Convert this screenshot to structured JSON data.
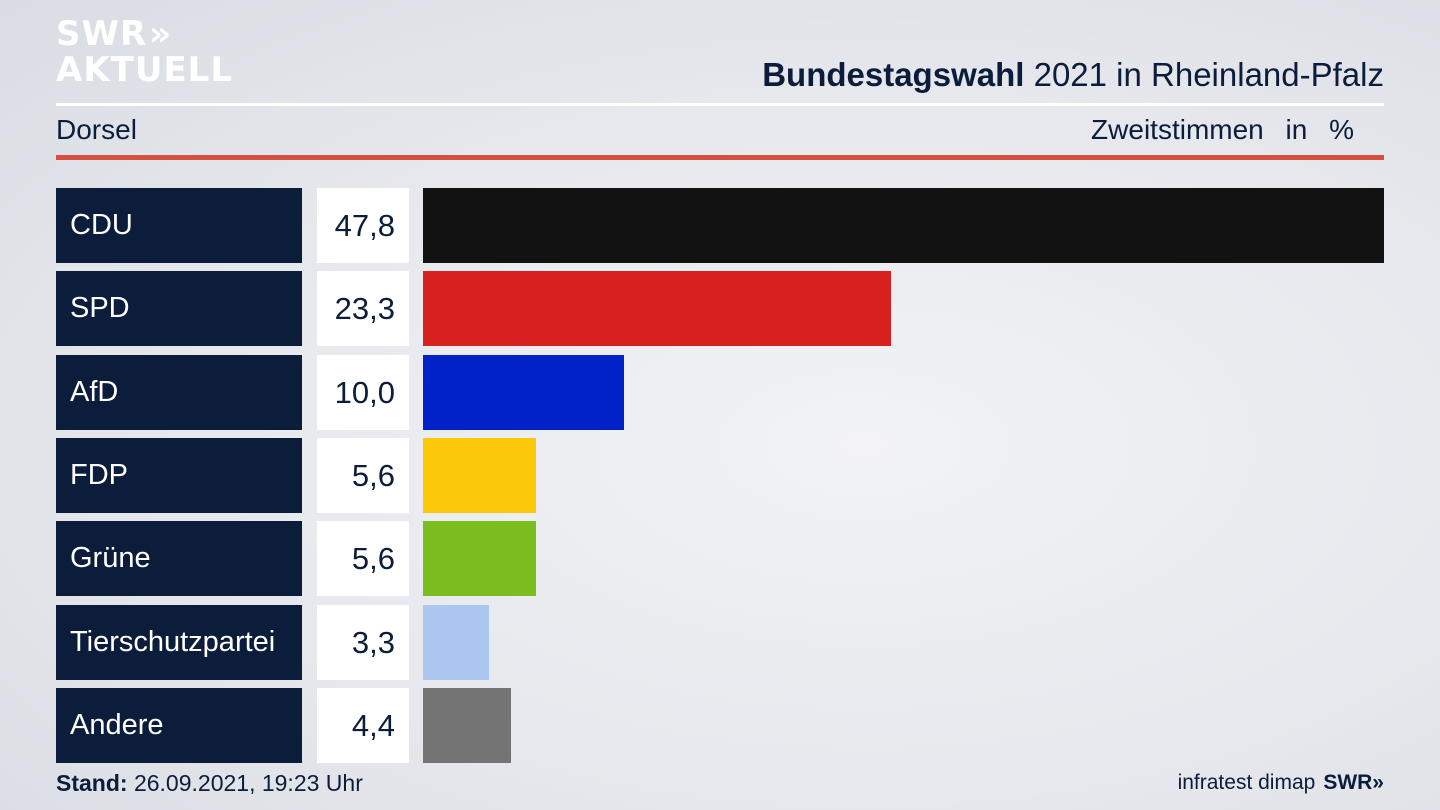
{
  "logo": {
    "line1": "SWR",
    "chevrons": "»",
    "line2": "AKTUELL"
  },
  "header": {
    "title_bold": "Bundestagswahl",
    "title_rest": " 2021 in Rheinland-Pfalz",
    "region": "Dorsel",
    "measure": "Zweitstimmen",
    "unit": "in %"
  },
  "chart_data": {
    "type": "bar",
    "orientation": "horizontal",
    "title": "Bundestagswahl 2021 in Rheinland-Pfalz",
    "subtitle": "Dorsel",
    "xlabel": "Zweitstimmen in %",
    "ylabel": "",
    "xlim": [
      0,
      47.8
    ],
    "grid": false,
    "legend": "none",
    "categories": [
      "CDU",
      "SPD",
      "AfD",
      "FDP",
      "Grüne",
      "Tierschutzpartei",
      "Andere"
    ],
    "values": [
      47.8,
      23.3,
      10.0,
      5.6,
      5.6,
      3.3,
      4.4
    ],
    "value_labels": [
      "47,8",
      "23,3",
      "10,0",
      "5,6",
      "5,6",
      "3,3",
      "4,4"
    ],
    "colors": [
      "#121212",
      "#d8201f",
      "#0022c8",
      "#fbc80a",
      "#7bbd1e",
      "#adc8f0",
      "#747474"
    ]
  },
  "footer": {
    "stand_label": "Stand:",
    "stand_value": " 26.09.2021, 19:23 Uhr",
    "source": "infratest dimap",
    "brand": "SWR»"
  }
}
